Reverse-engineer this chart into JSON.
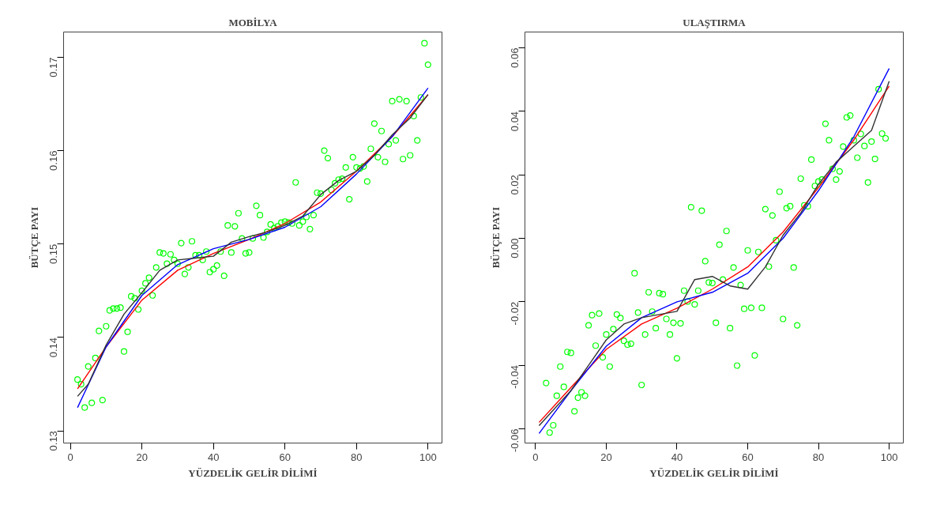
{
  "chart_data": [
    {
      "type": "scatter",
      "title": "MOBİLYA",
      "xlabel": "YÜZDELİK GELİR DİLİMİ",
      "ylabel": "BÜTÇE PAYI",
      "xlim": [
        -1.9,
        103.9
      ],
      "ylim": [
        0.1287,
        0.1727
      ],
      "xticks": [
        0,
        20,
        40,
        60,
        80,
        100
      ],
      "yticks": [
        0.13,
        0.14,
        0.15,
        0.16,
        0.17
      ],
      "grid": false,
      "series": [
        {
          "marker": "circle",
          "color": "#00ff00",
          "x": [
            2,
            3,
            4,
            5,
            6,
            7,
            8,
            9,
            10,
            11,
            12,
            13,
            14,
            15,
            16,
            17,
            18,
            19,
            20,
            21,
            22,
            23,
            24,
            25,
            26,
            27,
            28,
            29,
            30,
            31,
            32,
            33,
            34,
            35,
            36,
            37,
            38,
            39,
            40,
            41,
            42,
            43,
            44,
            45,
            46,
            47,
            48,
            49,
            50,
            51,
            52,
            53,
            54,
            55,
            56,
            57,
            58,
            59,
            60,
            61,
            62,
            63,
            64,
            65,
            66,
            67,
            68,
            69,
            70,
            71,
            72,
            73,
            74,
            75,
            76,
            77,
            78,
            79,
            80,
            81,
            82,
            83,
            84,
            85,
            86,
            87,
            88,
            89,
            90,
            91,
            92,
            93,
            94,
            95,
            96,
            97,
            98,
            99,
            100
          ],
          "values": [
            0.1355,
            0.135,
            0.1325,
            0.1369,
            0.133,
            0.1378,
            0.1407,
            0.1333,
            0.1412,
            0.1429,
            0.1431,
            0.1431,
            0.1432,
            0.1385,
            0.1406,
            0.1444,
            0.1442,
            0.143,
            0.145,
            0.1458,
            0.1464,
            0.1445,
            0.1475,
            0.1491,
            0.149,
            0.1479,
            0.1489,
            0.1483,
            0.1479,
            0.1501,
            0.1468,
            0.1475,
            0.1503,
            0.1488,
            0.1488,
            0.1483,
            0.1492,
            0.147,
            0.1473,
            0.1477,
            0.1492,
            0.1466,
            0.152,
            0.1491,
            0.1519,
            0.1533,
            0.1506,
            0.149,
            0.1491,
            0.1506,
            0.1541,
            0.1531,
            0.1507,
            0.1513,
            0.1521,
            0.1517,
            0.1519,
            0.1523,
            0.1524,
            0.1523,
            0.1522,
            0.1566,
            0.152,
            0.1524,
            0.1529,
            0.1516,
            0.1531,
            0.1555,
            0.1554,
            0.16,
            0.1592,
            0.1558,
            0.1565,
            0.1569,
            0.157,
            0.1582,
            0.1548,
            0.1593,
            0.1582,
            0.1581,
            0.1583,
            0.1567,
            0.1602,
            0.1629,
            0.1593,
            0.1621,
            0.1588,
            0.1607,
            0.1653,
            0.1611,
            0.1655,
            0.1591,
            0.1653,
            0.1595,
            0.1637,
            0.1611,
            0.1657,
            0.1715,
            0.1692
          ]
        },
        {
          "type": "line",
          "marker": "none",
          "color": "#ff0000",
          "x": [
            2,
            10,
            20,
            30,
            40,
            50,
            60,
            70,
            80,
            90,
            100
          ],
          "values": [
            0.1345,
            0.139,
            0.144,
            0.1472,
            0.149,
            0.1505,
            0.1522,
            0.1545,
            0.1578,
            0.1615,
            0.166
          ]
        },
        {
          "type": "line",
          "marker": "none",
          "color": "#0000ff",
          "x": [
            2,
            10,
            20,
            30,
            40,
            50,
            60,
            70,
            80,
            90,
            100
          ],
          "values": [
            0.1325,
            0.139,
            0.1445,
            0.1478,
            0.1495,
            0.1505,
            0.1518,
            0.154,
            0.1575,
            0.1615,
            0.1667
          ]
        },
        {
          "type": "line",
          "marker": "none",
          "color": "#333333",
          "x": [
            2,
            5,
            10,
            15,
            20,
            25,
            30,
            35,
            40,
            45,
            50,
            55,
            60,
            65,
            70,
            75,
            80,
            85,
            90,
            95,
            100
          ],
          "values": [
            0.1337,
            0.135,
            0.1392,
            0.1425,
            0.1448,
            0.1472,
            0.1483,
            0.1485,
            0.1487,
            0.1502,
            0.1508,
            0.1513,
            0.152,
            0.153,
            0.1553,
            0.1568,
            0.1578,
            0.1595,
            0.1617,
            0.1635,
            0.166
          ]
        }
      ]
    },
    {
      "type": "scatter",
      "title": "ULAŞTIRMA",
      "xlabel": "YÜZDELİK GELİR DİLİMİ",
      "ylabel": "BÜTÇE PAYI",
      "xlim": [
        -3,
        104
      ],
      "ylim": [
        -0.0645,
        0.065
      ],
      "xticks": [
        0,
        20,
        40,
        60,
        80,
        100
      ],
      "yticks": [
        {
          "value": -0.06,
          "label": "-0.06"
        },
        {
          "value": -0.04,
          "label": "-0.04"
        },
        {
          "value": -0.02,
          "label": "-0.02"
        },
        {
          "value": 0,
          "label": "0.00"
        },
        {
          "value": 0.02,
          "label": "0.02"
        },
        {
          "value": 0.04,
          "label": "0.04"
        },
        {
          "value": 0.06,
          "label": "0.06"
        }
      ],
      "grid": false,
      "series": [
        {
          "marker": "circle",
          "color": "#00ff00",
          "x": [
            3,
            4,
            5,
            6,
            7,
            8,
            9,
            10,
            11,
            12,
            13,
            14,
            15,
            16,
            17,
            18,
            19,
            20,
            21,
            22,
            23,
            24,
            25,
            26,
            27,
            28,
            29,
            30,
            31,
            32,
            33,
            34,
            35,
            36,
            37,
            38,
            39,
            40,
            41,
            42,
            43,
            44,
            45,
            46,
            47,
            48,
            49,
            50,
            51,
            52,
            53,
            54,
            55,
            56,
            57,
            58,
            59,
            60,
            61,
            62,
            63,
            64,
            65,
            66,
            67,
            68,
            69,
            70,
            71,
            72,
            73,
            74,
            75,
            76,
            77,
            78,
            79,
            80,
            81,
            82,
            83,
            84,
            85,
            86,
            87,
            88,
            89,
            90,
            91,
            92,
            93,
            94,
            95,
            96,
            97,
            98,
            99
          ],
          "values": [
            -0.0456,
            -0.0612,
            -0.0589,
            -0.0496,
            -0.0404,
            -0.0468,
            -0.0358,
            -0.0361,
            -0.0545,
            -0.0502,
            -0.0485,
            -0.0496,
            -0.0274,
            -0.0242,
            -0.0338,
            -0.0237,
            -0.0375,
            -0.0303,
            -0.0404,
            -0.0286,
            -0.024,
            -0.0251,
            -0.0323,
            -0.0335,
            -0.0332,
            -0.011,
            -0.0234,
            -0.0462,
            -0.0303,
            -0.017,
            -0.0231,
            -0.0283,
            -0.0173,
            -0.0176,
            -0.0254,
            -0.0303,
            -0.0266,
            -0.0378,
            -0.0268,
            -0.0165,
            -0.0199,
            0.0098,
            -0.0208,
            -0.0165,
            0.0087,
            -0.0072,
            -0.0139,
            -0.0141,
            -0.0266,
            -0.002,
            -0.013,
            0.0023,
            -0.0283,
            -0.0092,
            -0.0401,
            -0.0147,
            -0.0222,
            -0.0038,
            -0.0219,
            -0.0369,
            -0.0043,
            -0.0219,
            0.0092,
            -0.0089,
            0.0072,
            -0.0006,
            0.0147,
            -0.0254,
            0.0095,
            0.0101,
            -0.0092,
            -0.0274,
            0.0188,
            0.0104,
            0.0101,
            0.0248,
            0.0165,
            0.0179,
            0.0185,
            0.0361,
            0.0309,
            0.0219,
            0.0185,
            0.0211,
            0.0289,
            0.0381,
            0.0387,
            0.0309,
            0.0254,
            0.0329,
            0.0291,
            0.0176,
            0.0305,
            0.025,
            0.047,
            0.033,
            0.0315
          ]
        },
        {
          "type": "line",
          "marker": "none",
          "color": "#ff0000",
          "x": [
            1,
            10,
            20,
            30,
            40,
            50,
            60,
            70,
            80,
            90,
            100
          ],
          "values": [
            -0.058,
            -0.047,
            -0.035,
            -0.027,
            -0.022,
            -0.016,
            -0.009,
            0.002,
            0.016,
            0.031,
            0.048
          ]
        },
        {
          "type": "line",
          "marker": "none",
          "color": "#0000ff",
          "x": [
            1,
            10,
            20,
            30,
            40,
            50,
            60,
            70,
            80,
            90,
            100
          ],
          "values": [
            -0.0615,
            -0.048,
            -0.034,
            -0.025,
            -0.02,
            -0.017,
            -0.011,
            0.0,
            0.015,
            0.032,
            0.0535
          ]
        },
        {
          "type": "line",
          "marker": "none",
          "color": "#333333",
          "x": [
            1,
            10,
            15,
            20,
            25,
            30,
            35,
            40,
            45,
            50,
            55,
            60,
            65,
            70,
            75,
            80,
            85,
            90,
            95,
            100
          ],
          "values": [
            -0.059,
            -0.048,
            -0.04,
            -0.032,
            -0.027,
            -0.025,
            -0.024,
            -0.023,
            -0.013,
            -0.012,
            -0.015,
            -0.016,
            -0.009,
            0.001,
            0.008,
            0.017,
            0.024,
            0.029,
            0.034,
            0.0495
          ]
        }
      ]
    }
  ]
}
